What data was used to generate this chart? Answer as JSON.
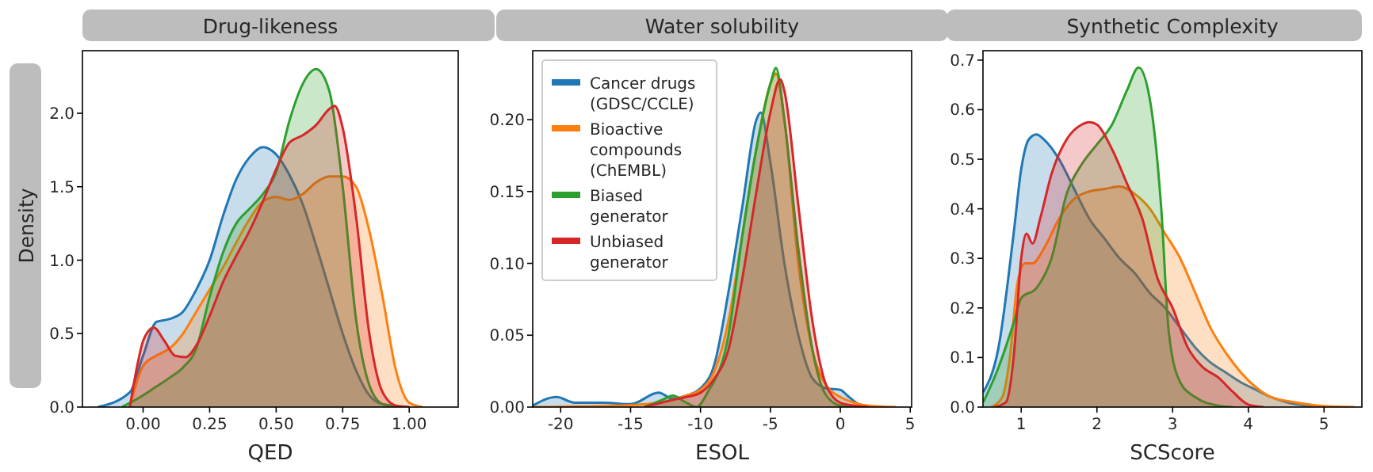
{
  "chart_data": [
    {
      "type": "area",
      "title": "Drug-likeness",
      "xlabel": "QED",
      "ylabel": "Density",
      "xlim": [
        -0.228,
        1.184
      ],
      "ylim": [
        0,
        2.426
      ],
      "xticks": [
        {
          "value": 0,
          "label": "0.00"
        },
        {
          "value": 0.25,
          "label": "0.25"
        },
        {
          "value": 0.5,
          "label": "0.50"
        },
        {
          "value": 0.75,
          "label": "0.75"
        },
        {
          "value": 1,
          "label": "1.00"
        }
      ],
      "yticks": [
        {
          "value": 0,
          "label": "0.0"
        },
        0.5,
        {
          "value": 1,
          "label": "1.0"
        },
        1.5,
        {
          "value": 2,
          "label": "2.0"
        }
      ],
      "series": [
        {
          "color": "#1f77b4",
          "x": [
            -0.17,
            -0.05,
            0,
            0.05,
            0.1,
            0.15,
            0.2,
            0.25,
            0.3,
            0.35,
            0.4,
            0.45,
            0.5,
            0.55,
            0.6,
            0.65,
            0.7,
            0.75,
            0.8,
            0.85,
            0.9,
            1.0
          ],
          "values": [
            0,
            0.1,
            0.35,
            0.58,
            0.6,
            0.65,
            0.8,
            1.0,
            1.3,
            1.55,
            1.7,
            1.77,
            1.72,
            1.58,
            1.38,
            1.1,
            0.8,
            0.5,
            0.25,
            0.08,
            0.02,
            0
          ]
        },
        {
          "color": "#ff7f0e",
          "x": [
            -0.05,
            0,
            0.05,
            0.1,
            0.15,
            0.2,
            0.25,
            0.3,
            0.35,
            0.4,
            0.45,
            0.5,
            0.55,
            0.6,
            0.65,
            0.7,
            0.75,
            0.8,
            0.85,
            0.9,
            0.95,
            1.0,
            1.05
          ],
          "values": [
            0,
            0.28,
            0.35,
            0.4,
            0.5,
            0.65,
            0.8,
            0.95,
            1.12,
            1.28,
            1.4,
            1.43,
            1.41,
            1.45,
            1.53,
            1.57,
            1.57,
            1.5,
            1.2,
            0.75,
            0.25,
            0.03,
            0
          ]
        },
        {
          "color": "#2ca02c",
          "x": [
            -0.08,
            0,
            0.05,
            0.1,
            0.15,
            0.2,
            0.25,
            0.3,
            0.35,
            0.4,
            0.45,
            0.5,
            0.55,
            0.6,
            0.65,
            0.7,
            0.75,
            0.8,
            0.85,
            0.9,
            0.95
          ],
          "values": [
            0,
            0.08,
            0.14,
            0.2,
            0.27,
            0.4,
            0.75,
            1.05,
            1.25,
            1.35,
            1.45,
            1.6,
            1.95,
            2.2,
            2.3,
            2.15,
            1.5,
            0.6,
            0.15,
            0.02,
            0
          ]
        },
        {
          "color": "#d62728",
          "x": [
            -0.05,
            -0.02,
            0,
            0.04,
            0.08,
            0.12,
            0.16,
            0.2,
            0.25,
            0.3,
            0.35,
            0.4,
            0.45,
            0.5,
            0.55,
            0.6,
            0.65,
            0.7,
            0.72,
            0.75,
            0.8,
            0.85,
            0.9,
            0.95,
            1.0
          ],
          "values": [
            0,
            0.3,
            0.45,
            0.54,
            0.45,
            0.35,
            0.34,
            0.42,
            0.62,
            0.85,
            1.03,
            1.2,
            1.4,
            1.62,
            1.8,
            1.85,
            1.92,
            2.03,
            2.05,
            1.9,
            1.3,
            0.5,
            0.1,
            0.01,
            0
          ]
        }
      ]
    },
    {
      "type": "area",
      "title": "Water solubility",
      "xlabel": "ESOL",
      "xlim": [
        -22,
        5.1
      ],
      "ylim": [
        0,
        0.248
      ],
      "legend": "top left",
      "xticks": [
        -20,
        -15,
        -10,
        -5,
        0,
        5
      ],
      "yticks": [
        {
          "value": 0,
          "label": "0.00"
        },
        0.05,
        {
          "value": 0.1,
          "label": "0.10"
        },
        0.15,
        {
          "value": 0.2,
          "label": "0.20"
        }
      ],
      "series": [
        {
          "name": "Cancer drugs\n(GDSC/CCLE)",
          "color": "#1f77b4",
          "x": [
            -22,
            -20.3,
            -19,
            -17,
            -15,
            -13,
            -12,
            -11,
            -10,
            -9,
            -8,
            -7,
            -6,
            -5.7,
            -5,
            -4,
            -3,
            -2,
            -1,
            0,
            0.5,
            1.5,
            2
          ],
          "values": [
            0.001,
            0.007,
            0.003,
            0.003,
            0.002,
            0.01,
            0.006,
            0.008,
            0.013,
            0.03,
            0.08,
            0.14,
            0.2,
            0.205,
            0.17,
            0.1,
            0.05,
            0.02,
            0.013,
            0.012,
            0.008,
            0.001,
            0
          ]
        },
        {
          "name": "Bioactive\ncompounds\n(ChEMBL)",
          "color": "#ff7f0e",
          "x": [
            -22,
            -16,
            -13,
            -12,
            -11,
            -10,
            -9,
            -8,
            -7,
            -6,
            -5,
            -4.6,
            -4,
            -3,
            -2,
            -1,
            0,
            1,
            2,
            4
          ],
          "values": [
            0,
            0.001,
            0.003,
            0.005,
            0.008,
            0.012,
            0.025,
            0.06,
            0.12,
            0.18,
            0.225,
            0.232,
            0.2,
            0.1,
            0.04,
            0.015,
            0.007,
            0.003,
            0.001,
            0
          ]
        },
        {
          "name": "Biased\ngenerator",
          "color": "#2ca02c",
          "x": [
            -14,
            -12.5,
            -12,
            -11,
            -10.3,
            -9.5,
            -8,
            -7,
            -6,
            -5,
            -4.6,
            -4,
            -3,
            -2,
            -1,
            0,
            1
          ],
          "values": [
            0,
            0.006,
            0.008,
            0.003,
            0,
            0.01,
            0.05,
            0.12,
            0.18,
            0.225,
            0.236,
            0.2,
            0.11,
            0.04,
            0.008,
            0.001,
            0
          ]
        },
        {
          "name": "Unbiased\ngenerator",
          "color": "#d62728",
          "x": [
            -14,
            -12,
            -11,
            -10,
            -9,
            -8,
            -7,
            -6,
            -5,
            -4.3,
            -4,
            -3,
            -2,
            -1,
            0,
            1,
            2
          ],
          "values": [
            0,
            0.005,
            0.007,
            0.01,
            0.02,
            0.04,
            0.09,
            0.15,
            0.205,
            0.228,
            0.22,
            0.14,
            0.06,
            0.015,
            0.003,
            0.001,
            0
          ]
        }
      ]
    },
    {
      "type": "area",
      "title": "Synthetic Complexity",
      "xlabel": "SCScore",
      "xlim": [
        0.495,
        5.5
      ],
      "ylim": [
        0,
        0.719
      ],
      "xticks": [
        1,
        2,
        3,
        4,
        5
      ],
      "yticks": [
        {
          "value": 0,
          "label": "0.0"
        },
        0.1,
        0.2,
        0.3,
        0.4,
        0.5,
        0.6,
        0.7
      ],
      "series": [
        {
          "color": "#1f77b4",
          "x": [
            0.5,
            0.7,
            0.9,
            1.0,
            1.1,
            1.2,
            1.3,
            1.5,
            1.7,
            1.9,
            2.1,
            2.3,
            2.5,
            2.7,
            2.9,
            3.1,
            3.3,
            3.5,
            3.7,
            3.9,
            4.1,
            4.3,
            4.5,
            5
          ],
          "values": [
            0.03,
            0.12,
            0.35,
            0.48,
            0.54,
            0.55,
            0.54,
            0.5,
            0.44,
            0.38,
            0.34,
            0.3,
            0.27,
            0.23,
            0.2,
            0.16,
            0.12,
            0.09,
            0.07,
            0.05,
            0.035,
            0.02,
            0.01,
            0
          ]
        },
        {
          "color": "#ff7f0e",
          "x": [
            0.6,
            0.75,
            0.85,
            0.95,
            1.05,
            1.15,
            1.3,
            1.5,
            1.7,
            1.9,
            2.1,
            2.3,
            2.5,
            2.7,
            2.9,
            3.1,
            3.3,
            3.5,
            3.7,
            3.9,
            4.1,
            4.3,
            4.6,
            5,
            5.4
          ],
          "values": [
            0,
            0.02,
            0.1,
            0.25,
            0.29,
            0.29,
            0.32,
            0.38,
            0.42,
            0.435,
            0.44,
            0.445,
            0.43,
            0.4,
            0.35,
            0.3,
            0.23,
            0.16,
            0.11,
            0.07,
            0.04,
            0.02,
            0.01,
            0.002,
            0
          ]
        },
        {
          "color": "#2ca02c",
          "x": [
            0.5,
            0.7,
            0.9,
            1.0,
            1.2,
            1.4,
            1.6,
            1.8,
            2.0,
            2.2,
            2.4,
            2.55,
            2.7,
            2.85,
            2.95,
            3.1,
            3.3,
            3.6,
            3.8
          ],
          "values": [
            0.01,
            0.08,
            0.17,
            0.22,
            0.24,
            0.3,
            0.43,
            0.49,
            0.53,
            0.57,
            0.64,
            0.685,
            0.62,
            0.4,
            0.15,
            0.05,
            0.02,
            0.003,
            0
          ]
        },
        {
          "color": "#d62728",
          "x": [
            0.65,
            0.8,
            0.9,
            1.0,
            1.07,
            1.15,
            1.25,
            1.4,
            1.6,
            1.8,
            1.9,
            2.0,
            2.2,
            2.4,
            2.6,
            2.8,
            3.0,
            3.2,
            3.4,
            3.6,
            3.8,
            4.0,
            4.2
          ],
          "values": [
            0,
            0.01,
            0.1,
            0.3,
            0.35,
            0.33,
            0.38,
            0.47,
            0.54,
            0.57,
            0.575,
            0.57,
            0.52,
            0.45,
            0.38,
            0.26,
            0.2,
            0.12,
            0.08,
            0.06,
            0.03,
            0.005,
            0
          ]
        }
      ]
    }
  ]
}
